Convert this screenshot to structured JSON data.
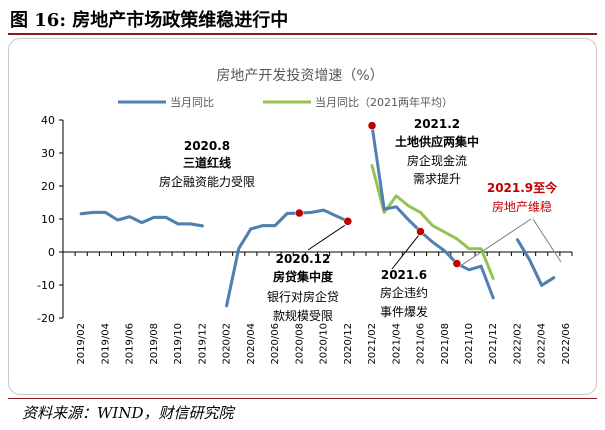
{
  "figure": {
    "title": "图 16:  房地产市场政策维稳进行中",
    "source": "资料来源：WIND，财信研究院"
  },
  "chart_data": {
    "type": "line",
    "title": "房地产开发投资增速（%）",
    "xlabel": "",
    "ylabel": "",
    "ylim": [
      -20,
      40
    ],
    "yticks": [
      -20,
      -10,
      0,
      10,
      20,
      30,
      40
    ],
    "grid": false,
    "legend": "top-center",
    "categories": [
      "2019/01",
      "2019/02",
      "2019/03",
      "2019/04",
      "2019/05",
      "2019/06",
      "2019/07",
      "2019/08",
      "2019/09",
      "2019/10",
      "2019/11",
      "2019/12",
      "2020/01",
      "2020/02",
      "2020/03",
      "2020/04",
      "2020/05",
      "2020/06",
      "2020/07",
      "2020/08",
      "2020/09",
      "2020/10",
      "2020/11",
      "2020/12",
      "2021/01",
      "2021/02",
      "2021/03",
      "2021/04",
      "2021/05",
      "2021/06",
      "2021/07",
      "2021/08",
      "2021/09",
      "2021/10",
      "2021/11",
      "2021/12",
      "2022/01",
      "2022/02",
      "2022/03",
      "2022/04",
      "2022/05",
      "2022/06"
    ],
    "x_tick_labels": [
      "2019/02",
      "2019/04",
      "2019/06",
      "2019/08",
      "2019/10",
      "2019/12",
      "2020/02",
      "2020/04",
      "2020/06",
      "2020/08",
      "2020/10",
      "2020/12",
      "2021/02",
      "2021/04",
      "2021/06",
      "2021/08",
      "2021/10",
      "2021/12",
      "2022/02",
      "2022/04",
      "2022/06"
    ],
    "series": [
      {
        "name": "当月同比",
        "color": "#4f7fb5",
        "values": [
          null,
          11.6,
          12.0,
          12.0,
          9.7,
          10.7,
          8.9,
          10.5,
          10.5,
          8.5,
          8.5,
          7.9,
          null,
          -16.3,
          1.0,
          7.0,
          8.0,
          8.0,
          11.7,
          11.8,
          12.0,
          12.7,
          11.0,
          9.3,
          null,
          38.3,
          13.0,
          13.7,
          9.8,
          6.2,
          3.0,
          0.3,
          -3.5,
          -5.4,
          -4.3,
          -13.9,
          null,
          3.7,
          -2.4,
          -10.1,
          -7.8,
          null
        ]
      },
      {
        "name": "当月同比（2021两年平均）",
        "color": "#92c353",
        "values": [
          null,
          11.6,
          12.0,
          12.0,
          9.7,
          10.7,
          8.9,
          10.5,
          10.5,
          8.5,
          8.5,
          7.9,
          null,
          -16.3,
          1.0,
          7.0,
          8.0,
          8.0,
          11.7,
          11.8,
          12.0,
          12.7,
          11.0,
          9.3,
          null,
          26.2,
          12.0,
          17.0,
          14.0,
          12.0,
          8.0,
          6.0,
          4.0,
          1.0,
          1.0,
          -8.0,
          null,
          3.7,
          -2.4,
          -10.1,
          -7.8,
          null
        ]
      }
    ],
    "highlight_points": [
      {
        "x": "2020/08",
        "y": 11.8
      },
      {
        "x": "2020/12",
        "y": 9.3
      },
      {
        "x": "2021/02",
        "y": 38.3
      },
      {
        "x": "2021/06",
        "y": 6.2
      },
      {
        "x": "2021/09",
        "y": -3.5
      }
    ],
    "annotations": [
      {
        "lines": [
          "2020.8",
          "三道红线",
          "房企融资能力受限"
        ]
      },
      {
        "lines": [
          "2020.12",
          "房贷集中度",
          "银行对房企贷",
          "款规模受限"
        ]
      },
      {
        "lines": [
          "2021.2",
          "土地供应两集中",
          "房企现金流",
          "需求提升"
        ]
      },
      {
        "lines": [
          "2021.6",
          "房企违约",
          "事件爆发"
        ]
      },
      {
        "lines": [
          "2021.9至今",
          "房地产维稳"
        ]
      }
    ],
    "colors": {
      "marker": "#c00000",
      "axis": "#000000",
      "annotation_red": "#c00000"
    }
  }
}
